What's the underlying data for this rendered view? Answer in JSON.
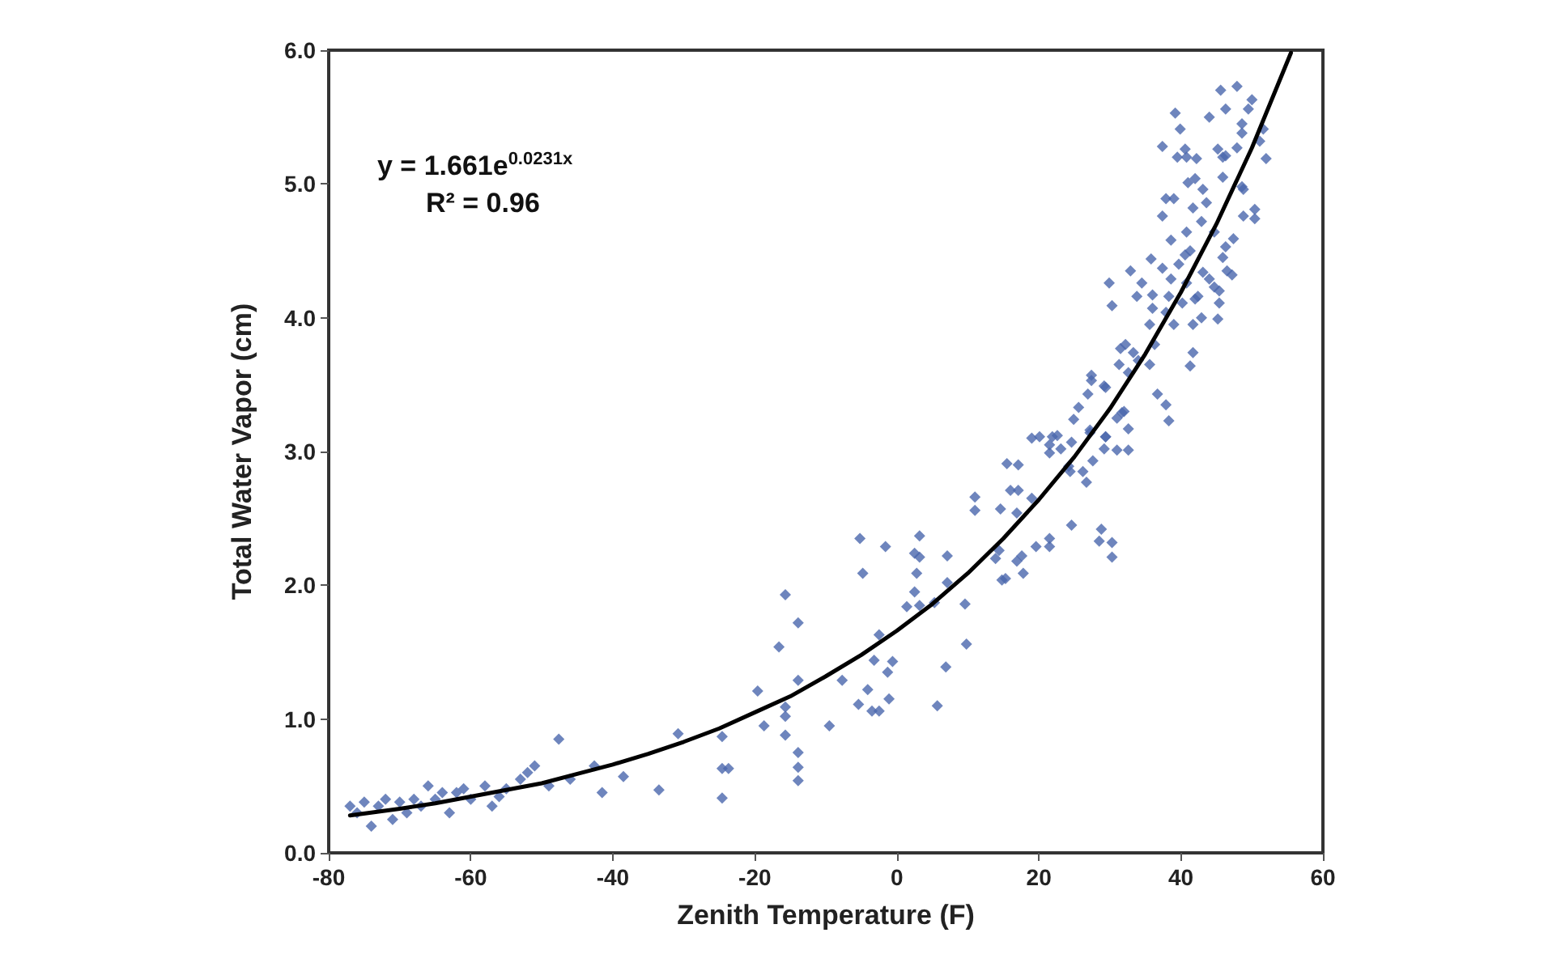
{
  "chart_data": {
    "type": "scatter",
    "xlabel": "Zenith Temperature (F)",
    "ylabel": "Total Water Vapor (cm)",
    "annotations": [
      "y = 1.661e$^{0.0231x}$",
      "R² = 0.96"
    ],
    "xlim": [
      -80,
      60
    ],
    "xticks": [
      -80,
      -60,
      -40,
      -20,
      0,
      20,
      40,
      60
    ],
    "ylim": [
      0,
      6
    ],
    "yticks": [
      {
        "value": 0,
        "label": "0.0"
      },
      {
        "value": 1,
        "label": "1.0"
      },
      {
        "value": 2,
        "label": "2.0"
      },
      {
        "value": 3,
        "label": "3.0"
      },
      {
        "value": 4,
        "label": "4.0"
      },
      {
        "value": 5,
        "label": "5.0"
      },
      {
        "value": 6,
        "label": "6.0"
      }
    ],
    "marker": "diamond",
    "series": [
      {
        "color": "#4a66ac",
        "x": [
          -77,
          -76,
          -75,
          -74,
          -73,
          -72,
          -71,
          -70,
          -69,
          -68,
          -67,
          -66,
          -65,
          -64,
          -63,
          -62,
          -61,
          -60,
          -58,
          -57,
          -56,
          -55,
          -53,
          -52,
          -51,
          -49,
          -47.6,
          -46,
          -42.6,
          -41.5,
          -38.5,
          -33.5,
          -30.8,
          -24.6,
          -24.6,
          -23.7,
          -24.6,
          -19.6,
          -18.7,
          -16.6,
          -15.7,
          -15.7,
          -15.7,
          -15.7,
          -13.9,
          -13.9,
          -13.9,
          -13.9,
          -13.9,
          -9.5,
          -7.7,
          -5.4,
          -4.1,
          -3.5,
          -2.5,
          -1.1,
          -3.2,
          -1.3,
          -0.6,
          -2.5,
          -5.2,
          -4.8,
          -1.6,
          1.4,
          2.5,
          3.2,
          2.8,
          2.5,
          3.2,
          3.2,
          5.3,
          5.7,
          6.9,
          7.1,
          7.1,
          9.6,
          9.8,
          11,
          11,
          13.9,
          14.4,
          14.6,
          14.8,
          15.3,
          16,
          17.1,
          16.9,
          16.9,
          17.6,
          17.8,
          19,
          15.5,
          17.1,
          19.6,
          21.5,
          21.5,
          24.6,
          28.8,
          28.5,
          30.3,
          30.3,
          19,
          20.1,
          21.5,
          21.9,
          22.6,
          21.5,
          23.1,
          24.6,
          24.2,
          24.4,
          26.2,
          26.7,
          24.9,
          25.6,
          26.9,
          27.4,
          27.4,
          27.2,
          27.6,
          29.2,
          29.4,
          29.2,
          29.4,
          31,
          32,
          32.6,
          31,
          31.3,
          27.2,
          29.4,
          32.6,
          31.7,
          31.5,
          32.2,
          33.3,
          32.6,
          34,
          35.6,
          36.3,
          30.3,
          29.9,
          32.9,
          33.8,
          34.5,
          36,
          36,
          35.6,
          35.8,
          37.4,
          38.3,
          37.9,
          39,
          38.6,
          39.7,
          40.6,
          41.3,
          40.2,
          40.8,
          42,
          42.4,
          41.7,
          42.9,
          43.1,
          44,
          44.7,
          45.4,
          45.4,
          45.2,
          45.9,
          46.5,
          47.2,
          41.7,
          41.3,
          36.7,
          37.9,
          38.3,
          37.4,
          38.6,
          40.8,
          41.7,
          42.9,
          43.6,
          44.7,
          46.3,
          47.4,
          48.8,
          50.4,
          50.4,
          37.9,
          39,
          41,
          42,
          43.1,
          45.9,
          48.6,
          48.8,
          45.2,
          45.9,
          46.3,
          37.4,
          40.6,
          39.5,
          40.8,
          42.2,
          39.2,
          39.9,
          44,
          46.3,
          45.6,
          47.9,
          50,
          49.5,
          48.6,
          48.6,
          47.9,
          51.6,
          51.1,
          52
        ],
        "values": [
          0.35,
          0.3,
          0.38,
          0.2,
          0.35,
          0.4,
          0.25,
          0.38,
          0.3,
          0.4,
          0.35,
          0.5,
          0.4,
          0.45,
          0.3,
          0.45,
          0.48,
          0.4,
          0.5,
          0.35,
          0.42,
          0.48,
          0.55,
          0.6,
          0.65,
          0.5,
          0.85,
          0.55,
          0.65,
          0.45,
          0.57,
          0.47,
          0.89,
          0.87,
          0.63,
          0.63,
          0.41,
          1.21,
          0.95,
          1.54,
          1.93,
          1.09,
          1.02,
          0.88,
          1.72,
          1.29,
          0.75,
          0.64,
          0.54,
          0.95,
          1.29,
          1.11,
          1.22,
          1.06,
          1.06,
          1.15,
          1.44,
          1.35,
          1.43,
          1.63,
          2.35,
          2.09,
          2.29,
          1.84,
          1.95,
          1.85,
          2.09,
          2.24,
          2.21,
          2.37,
          1.87,
          1.1,
          1.39,
          2.22,
          2.02,
          1.86,
          1.56,
          2.56,
          2.66,
          2.2,
          2.26,
          2.57,
          2.04,
          2.05,
          2.71,
          2.71,
          2.54,
          2.18,
          2.22,
          2.09,
          2.65,
          2.91,
          2.9,
          2.29,
          2.35,
          2.29,
          2.45,
          2.42,
          2.33,
          2.32,
          2.21,
          3.1,
          3.11,
          3.05,
          3.11,
          3.12,
          2.99,
          3.02,
          3.07,
          2.89,
          2.85,
          2.85,
          2.77,
          3.24,
          3.33,
          3.43,
          3.57,
          3.53,
          3.16,
          2.93,
          3.02,
          3.11,
          3.49,
          3.48,
          3.25,
          3.3,
          3.01,
          3.01,
          3.65,
          3.14,
          3.11,
          3.17,
          3.29,
          3.77,
          3.8,
          3.74,
          3.59,
          3.68,
          3.65,
          3.8,
          4.09,
          4.26,
          4.35,
          4.16,
          4.26,
          4.17,
          4.07,
          3.95,
          4.44,
          4.37,
          4.16,
          4.04,
          3.95,
          4.29,
          4.4,
          4.47,
          4.5,
          4.11,
          4.26,
          4.14,
          4.16,
          3.95,
          4.0,
          4.34,
          4.29,
          4.23,
          4.2,
          4.11,
          3.99,
          4.45,
          4.35,
          4.32,
          3.74,
          3.64,
          3.43,
          3.35,
          3.23,
          4.76,
          4.58,
          4.64,
          4.82,
          4.72,
          4.86,
          4.64,
          4.53,
          4.59,
          4.76,
          4.74,
          4.81,
          4.89,
          4.89,
          5.01,
          5.04,
          4.96,
          5.05,
          4.98,
          4.96,
          5.26,
          5.2,
          5.21,
          5.28,
          5.26,
          5.2,
          5.2,
          5.19,
          5.53,
          5.41,
          5.5,
          5.56,
          5.7,
          5.73,
          5.63,
          5.56,
          5.45,
          5.38,
          5.27,
          5.41,
          5.32,
          5.19
        ]
      },
      {
        "type": "line",
        "color": "#000000",
        "marker": "none",
        "line_style": "solid",
        "x": [
          -77,
          -70,
          -65,
          -60,
          -55,
          -50,
          -45,
          -40,
          -35,
          -30,
          -25,
          -20,
          -15,
          -10,
          -5,
          0,
          5,
          10,
          15,
          20,
          25,
          30,
          35,
          40,
          45,
          50,
          55.5
        ],
        "values": [
          0.28,
          0.33,
          0.37,
          0.42,
          0.47,
          0.52,
          0.59,
          0.66,
          0.74,
          0.83,
          0.93,
          1.05,
          1.17,
          1.32,
          1.48,
          1.66,
          1.86,
          2.09,
          2.35,
          2.64,
          2.96,
          3.32,
          3.73,
          4.19,
          4.7,
          5.27,
          5.98
        ]
      }
    ]
  }
}
